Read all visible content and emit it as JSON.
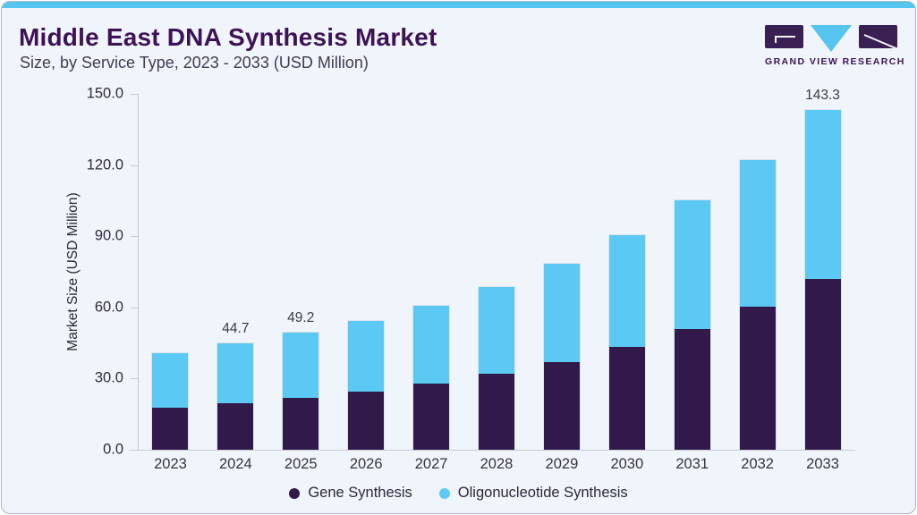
{
  "header": {
    "title": "Middle East DNA Synthesis Market",
    "subtitle": "Size, by Service Type, 2023 - 2033 (USD Million)"
  },
  "logo": {
    "name": "Grand View Research",
    "wordmark": "GRAND VIEW RESEARCH"
  },
  "colors": {
    "accent_bar": "#55c4ee",
    "gene_synthesis": "#31194a",
    "oligonucleotide_synthesis": "#5bc9f3",
    "title_text": "#3e1257",
    "card_background": "#eff5fa",
    "axis_line": "#c5cbd2"
  },
  "chart_data": {
    "type": "bar",
    "stacked": true,
    "title": "Middle East DNA Synthesis Market Size, by Service Type, 2023 - 2033 (USD Million)",
    "categories": [
      "2023",
      "2024",
      "2025",
      "2026",
      "2027",
      "2028",
      "2029",
      "2030",
      "2031",
      "2032",
      "2033"
    ],
    "series": [
      {
        "name": "Gene Synthesis",
        "color": "#31194a",
        "values": [
          17.9,
          19.6,
          22.0,
          24.4,
          27.9,
          32.0,
          36.8,
          43.3,
          51.0,
          60.4,
          72.0
        ]
      },
      {
        "name": "Oligonucleotide Synthesis",
        "color": "#5bc9f3",
        "values": [
          22.7,
          25.1,
          27.2,
          29.8,
          32.9,
          36.6,
          41.7,
          47.3,
          54.3,
          61.9,
          71.3
        ]
      }
    ],
    "totals": [
      40.6,
      44.7,
      49.2,
      54.2,
      60.8,
      68.6,
      78.5,
      90.6,
      105.3,
      122.3,
      143.3
    ],
    "bar_labels": [
      "",
      "44.7",
      "49.2",
      "",
      "",
      "",
      "",
      "",
      "",
      "",
      "143.3"
    ],
    "xlabel": "",
    "ylabel": "Market Size (USD Million)",
    "ylim": [
      0,
      150
    ],
    "yticks": [
      {
        "label": "150.0",
        "value": 150
      },
      {
        "label": "120.0",
        "value": 120
      },
      {
        "label": "90.0",
        "value": 90
      },
      {
        "label": "60.0",
        "value": 60
      },
      {
        "label": "30.0",
        "value": 30
      },
      {
        "label": "0.0",
        "value": 0
      }
    ],
    "grid": false,
    "legend_position": "bottom"
  }
}
